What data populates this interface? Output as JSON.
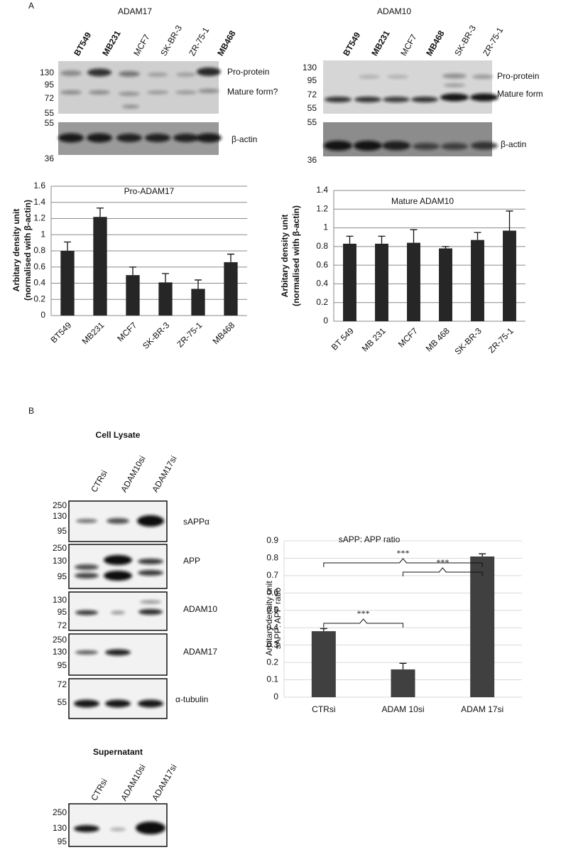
{
  "panel_labels": [
    "A",
    "B"
  ],
  "panel_a": {
    "left": {
      "title": "ADAM17",
      "lanes": [
        "BT549",
        "MB231",
        "MCF7",
        "SK-BR-3",
        "ZR-75-1",
        "MB468"
      ],
      "blots": [
        {
          "markers": [
            130,
            95,
            72,
            55
          ],
          "labels": [
            "Pro-protein",
            "Mature form?"
          ]
        },
        {
          "markers": [
            55,
            36
          ],
          "labels": [
            "β-actin"
          ]
        }
      ]
    },
    "right": {
      "title": "ADAM10",
      "lanes": [
        "BT549",
        "MB231",
        "MCF7",
        "MB468",
        "SK-BR-3",
        "ZR-75-1"
      ],
      "blots": [
        {
          "markers": [
            130,
            95,
            72,
            55
          ],
          "labels": [
            "Pro-protein",
            "Mature form"
          ]
        },
        {
          "markers": [
            55,
            36
          ],
          "labels": [
            "β-actin"
          ]
        }
      ]
    }
  },
  "panel_b": {
    "lysate": {
      "title": "Cell Lysate",
      "lanes": [
        "CTRsi",
        "ADAM10si",
        "ADAM17si"
      ],
      "blots": [
        {
          "markers": [
            250,
            130,
            95
          ],
          "label": "sAPPα"
        },
        {
          "markers": [
            250,
            130,
            95
          ],
          "label": "APP"
        },
        {
          "markers": [
            130,
            95,
            72
          ],
          "label": "ADAM10"
        },
        {
          "markers": [
            250,
            130,
            95
          ],
          "label": "ADAM17"
        },
        {
          "markers": [
            72,
            55
          ],
          "label": "α-tubulin"
        }
      ]
    },
    "supernatant": {
      "title": "Supernatant",
      "lanes": [
        "CTRsi",
        "ADAM10si",
        "ADAM17si"
      ],
      "markers": [
        250,
        130,
        95
      ]
    }
  },
  "chart_data": [
    {
      "type": "bar",
      "title": "Pro-ADAM17",
      "ylabel": [
        "Arbitary density unit",
        "(normalised with β-actin)"
      ],
      "categories": [
        "BT549",
        "MB231",
        "MCF7",
        "SK-BR-3",
        "ZR-75-1",
        "MB468"
      ],
      "values": [
        0.8,
        1.22,
        0.5,
        0.41,
        0.33,
        0.66
      ],
      "errors": [
        0.11,
        0.11,
        0.1,
        0.11,
        0.11,
        0.1
      ],
      "color": "#262626",
      "ylim": [
        0,
        1.6
      ],
      "yticks": [
        0,
        0.2,
        0.4,
        0.6,
        0.8,
        1,
        1.2,
        1.4,
        1.6
      ],
      "grid": true
    },
    {
      "type": "bar",
      "title": "Mature ADAM10",
      "ylabel": [
        "Arbitary density unit",
        "(normalised with β-actin)"
      ],
      "categories": [
        "BT 549",
        "MB 231",
        "MCF7",
        "MB 468",
        "SK-BR-3",
        "ZR-75-1"
      ],
      "values": [
        0.83,
        0.83,
        0.84,
        0.78,
        0.87,
        0.97
      ],
      "errors": [
        0.08,
        0.08,
        0.14,
        0.02,
        0.08,
        0.21
      ],
      "color": "#262626",
      "ylim": [
        0,
        1.4
      ],
      "yticks": [
        0,
        0.2,
        0.4,
        0.6,
        0.8,
        1,
        1.2,
        1.4
      ],
      "grid": true
    },
    {
      "type": "bar",
      "title": "sAPP: APP ratio",
      "ylabel": [
        "Arbitary density unit",
        "sAPP: APP ratio"
      ],
      "categories": [
        "CTRsi",
        "ADAM 10si",
        "ADAM 17si"
      ],
      "values": [
        0.38,
        0.16,
        0.81
      ],
      "errors": [
        0.015,
        0.035,
        0.015
      ],
      "color": "#404040",
      "ylim": [
        0,
        0.9
      ],
      "yticks": [
        0,
        0.1,
        0.2,
        0.3,
        0.4,
        0.5,
        0.6,
        0.7,
        0.8,
        0.9
      ],
      "grid": true,
      "annotations": [
        "***",
        "***",
        "***"
      ]
    }
  ]
}
